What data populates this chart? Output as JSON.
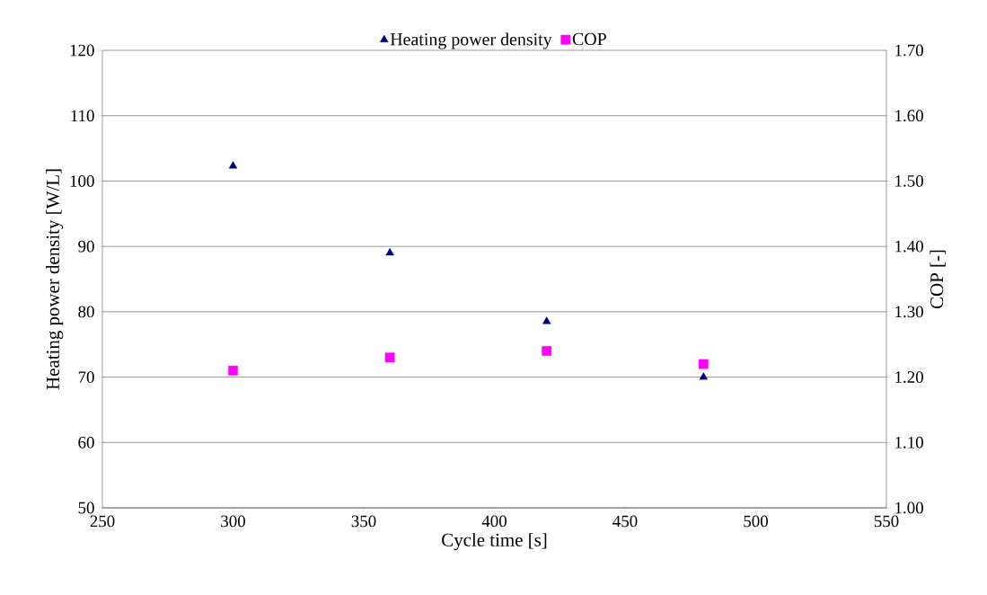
{
  "chart_data": {
    "type": "scatter",
    "xlabel": "Cycle time [s]",
    "ylabel": "Heating power density [W/L]",
    "y2label": "COP [-]",
    "x": [
      300,
      360,
      420,
      480
    ],
    "series": [
      {
        "name": "Heating power density",
        "color": "#000080",
        "marker": "triangle",
        "values": [
          102.3,
          89,
          78.5,
          70
        ]
      },
      {
        "name": "COP",
        "color": "#ff00ff",
        "marker": "square",
        "axis": "y2",
        "values": [
          1.21,
          1.23,
          1.24,
          1.22
        ]
      }
    ],
    "xlim": [
      250,
      550
    ],
    "xticks": [
      250,
      300,
      350,
      400,
      450,
      500,
      550
    ],
    "ylim": [
      50,
      120
    ],
    "yticks": [
      50,
      60,
      70,
      80,
      90,
      100,
      110,
      120
    ],
    "y2lim": [
      1.0,
      1.7
    ],
    "y2ticks": [
      {
        "value": 1.0,
        "label": "1.00"
      },
      {
        "value": 1.1,
        "label": "1.10"
      },
      {
        "value": 1.2,
        "label": "1.20"
      },
      {
        "value": 1.3,
        "label": "1.30"
      },
      {
        "value": 1.4,
        "label": "1.40"
      },
      {
        "value": 1.5,
        "label": "1.50"
      },
      {
        "value": 1.6,
        "label": "1.60"
      },
      {
        "value": 1.7,
        "label": "1.70"
      }
    ],
    "grid": "y",
    "legend": "top"
  }
}
